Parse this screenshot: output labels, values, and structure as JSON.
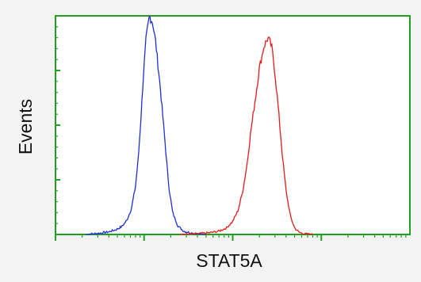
{
  "chart_data": {
    "type": "line",
    "title": "",
    "xlabel": "STAT5A",
    "ylabel": "Events",
    "x_scale": "log",
    "xlim": [
      1,
      10000
    ],
    "ylim": [
      0,
      100
    ],
    "grid": false,
    "legend": "none",
    "series": [
      {
        "color": "#1f2fd6",
        "x": [
          2.2,
          3.2,
          4.0,
          4.8,
          5.6,
          6.4,
          7.2,
          8.0,
          8.6,
          9.2,
          9.8,
          10.5,
          11.5,
          12.5,
          13.5,
          15,
          17,
          19,
          21,
          24,
          28,
          33,
          40,
          50
        ],
        "values": [
          0,
          0.6,
          1.2,
          2.2,
          3.6,
          6.5,
          12,
          22,
          35,
          53,
          72,
          89,
          100,
          97,
          88,
          70,
          45,
          22,
          10,
          4,
          1.5,
          0.8,
          0.3,
          0
        ]
      },
      {
        "color": "#e21b1b",
        "x": [
          25,
          40,
          55,
          70,
          85,
          100,
          115,
          130,
          145,
          160,
          180,
          200,
          225,
          250,
          275,
          300,
          330,
          360,
          400,
          450,
          500,
          560,
          650,
          800
        ],
        "values": [
          0,
          0.3,
          0.8,
          1.5,
          3,
          6,
          11,
          20,
          32,
          47,
          62,
          76,
          86,
          90,
          86,
          74,
          56,
          38,
          20,
          8,
          3,
          1,
          0.3,
          0
        ]
      }
    ]
  },
  "colors": {
    "axis": "#20a020",
    "background": "#f3f3f3",
    "plot_area": "#ffffff"
  }
}
